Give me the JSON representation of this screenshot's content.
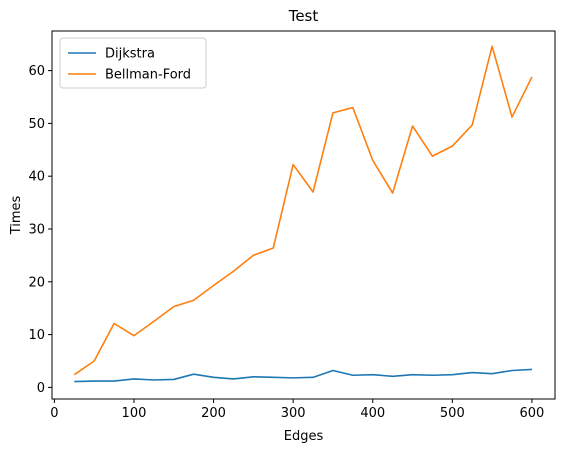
{
  "chart_data": {
    "type": "line",
    "title": "Test",
    "xlabel": "Edges",
    "ylabel": "Times",
    "xlim": [
      -3,
      629
    ],
    "ylim": [
      -2.2,
      67.5
    ],
    "xticks": [
      0,
      100,
      200,
      300,
      400,
      500,
      600
    ],
    "yticks": [
      0,
      10,
      20,
      30,
      40,
      50,
      60
    ],
    "grid": false,
    "legend_position": "top-left",
    "x": [
      25,
      50,
      75,
      100,
      125,
      150,
      175,
      200,
      225,
      250,
      275,
      300,
      325,
      350,
      375,
      400,
      425,
      450,
      475,
      500,
      525,
      550,
      575,
      600
    ],
    "series": [
      {
        "name": "Dijkstra",
        "color": "#1f77b4",
        "values": [
          1.1,
          1.2,
          1.2,
          1.6,
          1.4,
          1.5,
          2.5,
          1.9,
          1.6,
          2.0,
          1.9,
          1.8,
          1.9,
          3.2,
          2.3,
          2.4,
          2.1,
          2.4,
          2.3,
          2.4,
          2.8,
          2.6,
          3.2,
          3.4
        ]
      },
      {
        "name": "Bellman-Ford",
        "color": "#ff7f0e",
        "values": [
          2.4,
          5.0,
          12.1,
          9.8,
          12.5,
          15.3,
          16.5,
          19.3,
          22.0,
          25.0,
          26.4,
          42.2,
          37.0,
          52.0,
          53.0,
          43.0,
          36.8,
          49.5,
          43.8,
          45.7,
          49.7,
          64.6,
          51.2,
          58.8
        ]
      }
    ]
  }
}
